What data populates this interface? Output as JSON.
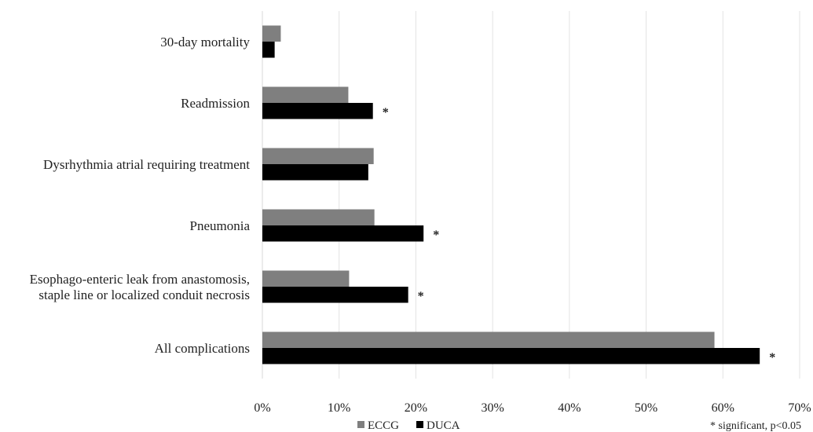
{
  "chart_data": {
    "type": "bar",
    "orientation": "horizontal",
    "categories": [
      [
        "30-day mortality"
      ],
      [
        "Readmission"
      ],
      [
        "Dysrhythmia atrial requiring treatment"
      ],
      [
        "Pneumonia"
      ],
      [
        "Esophago-enteric leak from anastomosis,",
        "staple line or localized conduit necrosis"
      ],
      [
        "All complications"
      ]
    ],
    "series": [
      {
        "name": "ECCG",
        "color": "#7f7f7f",
        "values": [
          2.4,
          11.2,
          14.5,
          14.6,
          11.3,
          58.9
        ]
      },
      {
        "name": "DUCA",
        "color": "#000000",
        "values": [
          1.6,
          14.4,
          13.8,
          21.0,
          19.0,
          64.8
        ]
      }
    ],
    "significant": [
      false,
      true,
      false,
      true,
      true,
      true
    ],
    "significance_marker": "*",
    "x_ticks": [
      "0%",
      "10%",
      "20%",
      "30%",
      "40%",
      "50%",
      "60%",
      "70%"
    ],
    "xlim": [
      0,
      70
    ],
    "grid": "vertical",
    "legend_position": "bottom",
    "footnote": "* significant, p<0.05"
  }
}
